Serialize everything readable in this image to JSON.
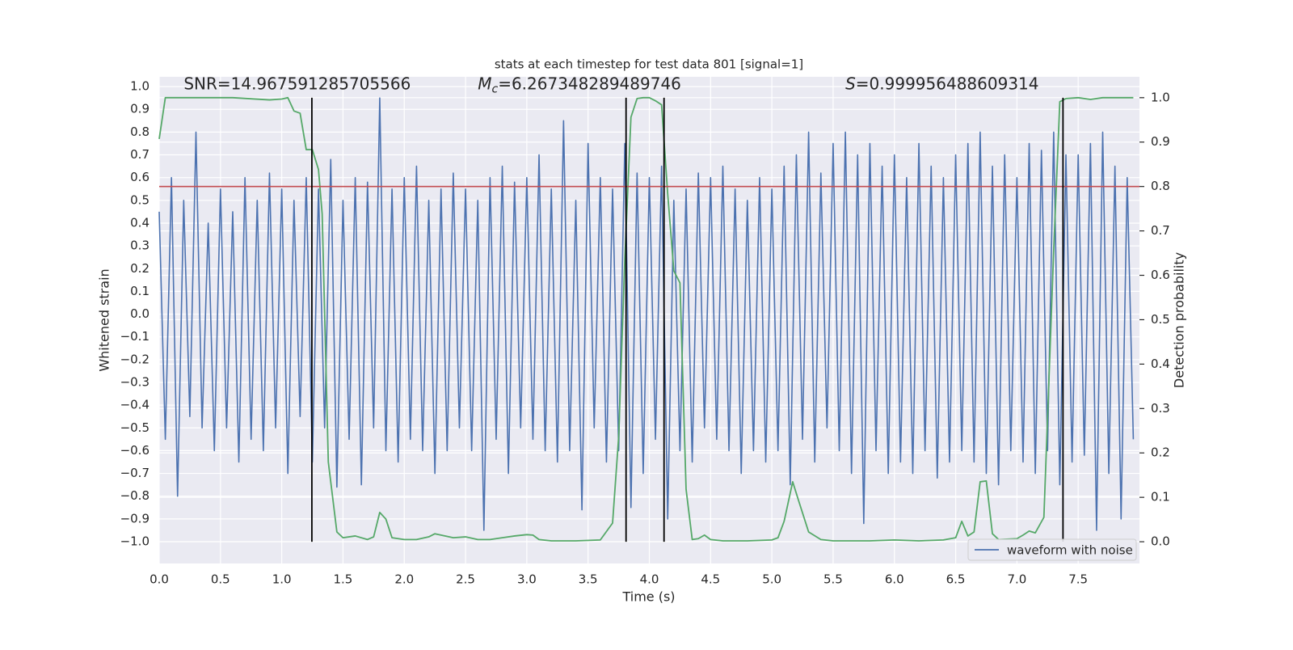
{
  "chart_data": {
    "type": "line",
    "title": "stats at each timestep for test data 801 [signal=1]",
    "xlabel": "Time (s)",
    "ylabel": "Whitened strain",
    "y2label": "Detection probability",
    "xlim": [
      0,
      8
    ],
    "ylim": [
      -1.096,
      1.043
    ],
    "y2lim": [
      -0.049,
      1.047
    ],
    "xticks": [
      {
        "value": 0,
        "label": "0.0"
      },
      0.5,
      {
        "value": 1,
        "label": "1.0"
      },
      1.5,
      {
        "value": 2,
        "label": "2.0"
      },
      2.5,
      {
        "value": 3,
        "label": "3.0"
      },
      3.5,
      {
        "value": 4,
        "label": "4.0"
      },
      4.5,
      {
        "value": 5,
        "label": "5.0"
      },
      5.5,
      {
        "value": 6,
        "label": "6.0"
      },
      6.5,
      {
        "value": 7,
        "label": "7.0"
      },
      7.5
    ],
    "yticks": [
      {
        "value": -1,
        "label": "−1.0"
      },
      {
        "value": -0.9,
        "label": "−0.9"
      },
      {
        "value": -0.8,
        "label": "−0.8"
      },
      {
        "value": -0.7,
        "label": "−0.7"
      },
      {
        "value": -0.6,
        "label": "−0.6"
      },
      {
        "value": -0.5,
        "label": "−0.5"
      },
      {
        "value": -0.4,
        "label": "−0.4"
      },
      {
        "value": -0.3,
        "label": "−0.3"
      },
      {
        "value": -0.2,
        "label": "−0.2"
      },
      {
        "value": -0.1,
        "label": "−0.1"
      },
      {
        "value": 0,
        "label": "0.0"
      },
      0.1,
      0.2,
      0.3,
      0.4,
      0.5,
      0.6,
      0.7,
      0.8,
      0.9,
      {
        "value": 1,
        "label": "1.0"
      }
    ],
    "y2ticks": [
      {
        "value": 0,
        "label": "0.0"
      },
      0.1,
      0.2,
      0.3,
      0.4,
      0.5,
      0.6,
      0.7,
      0.8,
      0.9,
      {
        "value": 1,
        "label": "1.0"
      }
    ],
    "grid": true,
    "legend": "lower right",
    "series": [
      {
        "name": "waveform with noise",
        "color": "#4c72b0",
        "x": [
          0,
          0.05,
          0.1,
          0.15,
          0.2,
          0.25,
          0.3,
          0.35,
          0.4,
          0.45,
          0.5,
          0.55,
          0.6,
          0.65,
          0.7,
          0.75,
          0.8,
          0.85,
          0.9,
          0.95,
          1,
          1.05,
          1.1,
          1.15,
          1.2,
          1.25,
          1.3,
          1.35,
          1.4,
          1.45,
          1.5,
          1.55,
          1.6,
          1.65,
          1.7,
          1.75,
          1.8,
          1.85,
          1.9,
          1.95,
          2,
          2.05,
          2.1,
          2.15,
          2.2,
          2.25,
          2.3,
          2.35,
          2.4,
          2.45,
          2.5,
          2.55,
          2.6,
          2.65,
          2.7,
          2.75,
          2.8,
          2.85,
          2.9,
          2.95,
          3,
          3.05,
          3.1,
          3.15,
          3.2,
          3.25,
          3.3,
          3.35,
          3.4,
          3.45,
          3.5,
          3.55,
          3.6,
          3.65,
          3.7,
          3.75,
          3.8,
          3.85,
          3.9,
          3.95,
          4,
          4.05,
          4.1,
          4.15,
          4.2,
          4.25,
          4.3,
          4.35,
          4.4,
          4.45,
          4.5,
          4.55,
          4.6,
          4.65,
          4.7,
          4.75,
          4.8,
          4.85,
          4.9,
          4.95,
          5,
          5.05,
          5.1,
          5.15,
          5.2,
          5.25,
          5.3,
          5.35,
          5.4,
          5.45,
          5.5,
          5.55,
          5.6,
          5.65,
          5.7,
          5.75,
          5.8,
          5.85,
          5.9,
          5.95,
          6,
          6.05,
          6.1,
          6.15,
          6.2,
          6.25,
          6.3,
          6.35,
          6.4,
          6.45,
          6.5,
          6.55,
          6.6,
          6.65,
          6.7,
          6.75,
          6.8,
          6.85,
          6.9,
          6.95,
          7,
          7.05,
          7.1,
          7.15,
          7.2,
          7.25,
          7.3,
          7.35,
          7.4,
          7.45,
          7.5,
          7.55,
          7.6,
          7.65,
          7.7,
          7.75,
          7.8,
          7.85,
          7.9,
          7.95
        ],
        "values": [
          0.45,
          -0.55,
          0.6,
          -0.8,
          0.5,
          -0.45,
          0.8,
          -0.5,
          0.4,
          -0.6,
          0.55,
          -0.5,
          0.45,
          -0.65,
          0.6,
          -0.55,
          0.5,
          -0.6,
          0.62,
          -0.5,
          0.55,
          -0.7,
          0.5,
          -0.45,
          0.6,
          -0.65,
          0.55,
          -0.5,
          0.68,
          -0.76,
          0.5,
          -0.55,
          0.6,
          -0.75,
          0.58,
          -0.5,
          0.95,
          -0.6,
          0.55,
          -0.65,
          0.6,
          -0.55,
          0.65,
          -0.6,
          0.5,
          -0.7,
          0.55,
          -0.6,
          0.62,
          -0.5,
          0.55,
          -0.6,
          0.5,
          -0.95,
          0.6,
          -0.55,
          0.65,
          -0.7,
          0.58,
          -0.5,
          0.6,
          -0.55,
          0.7,
          -0.6,
          0.55,
          -0.65,
          0.85,
          -0.6,
          0.5,
          -0.86,
          0.75,
          -0.5,
          0.6,
          -0.65,
          0.55,
          -0.6,
          0.75,
          -0.85,
          0.62,
          -0.7,
          0.6,
          -0.55,
          0.65,
          -0.9,
          0.5,
          -0.6,
          0.55,
          -0.65,
          0.62,
          -0.5,
          0.6,
          -0.55,
          0.65,
          -0.6,
          0.55,
          -0.7,
          0.5,
          -0.6,
          0.6,
          -0.65,
          0.55,
          -0.6,
          0.65,
          -0.75,
          0.7,
          -0.55,
          0.8,
          -0.65,
          0.62,
          -0.5,
          0.75,
          -0.6,
          0.8,
          -0.7,
          0.7,
          -0.92,
          0.75,
          -0.6,
          0.65,
          -0.7,
          0.7,
          -0.65,
          0.6,
          -0.7,
          0.75,
          -0.6,
          0.65,
          -0.72,
          0.6,
          -0.65,
          0.7,
          -0.6,
          0.75,
          -0.65,
          0.8,
          -0.7,
          0.65,
          -0.75,
          0.7,
          -0.6,
          0.6,
          -0.65,
          0.75,
          -0.7,
          0.72,
          -0.6,
          0.8,
          -0.75,
          0.7,
          -0.65,
          0.7,
          -0.62,
          0.75,
          -0.95,
          0.8,
          -0.7,
          0.65,
          -0.9,
          0.6,
          -0.55
        ]
      },
      {
        "color": "#55a868",
        "axis": "y2",
        "x": [
          0,
          0.05,
          0.6,
          0.9,
          1.0,
          1.05,
          1.1,
          1.15,
          1.2,
          1.25,
          1.3,
          1.33,
          1.38,
          1.45,
          1.5,
          1.6,
          1.7,
          1.75,
          1.8,
          1.85,
          1.9,
          2.0,
          2.1,
          2.2,
          2.25,
          2.3,
          2.4,
          2.5,
          2.6,
          2.7,
          2.8,
          2.9,
          3.0,
          3.05,
          3.1,
          3.2,
          3.4,
          3.6,
          3.7,
          3.75,
          3.8,
          3.85,
          3.9,
          3.95,
          4.0,
          4.05,
          4.1,
          4.15,
          4.2,
          4.25,
          4.3,
          4.35,
          4.4,
          4.45,
          4.5,
          4.6,
          4.8,
          5.0,
          5.05,
          5.1,
          5.17,
          5.22,
          5.3,
          5.4,
          5.5,
          5.8,
          6.0,
          6.2,
          6.4,
          6.5,
          6.55,
          6.6,
          6.65,
          6.7,
          6.75,
          6.8,
          6.85,
          7.0,
          7.05,
          7.1,
          7.15,
          7.22,
          7.3,
          7.35,
          7.4,
          7.5,
          7.6,
          7.7,
          7.95
        ],
        "values": [
          0.907,
          1.0,
          1.0,
          0.995,
          0.997,
          1.0,
          0.97,
          0.965,
          0.883,
          0.883,
          0.838,
          0.738,
          0.18,
          0.022,
          0.009,
          0.013,
          0.005,
          0.011,
          0.066,
          0.051,
          0.009,
          0.005,
          0.005,
          0.011,
          0.018,
          0.015,
          0.009,
          0.011,
          0.005,
          0.005,
          0.009,
          0.013,
          0.016,
          0.015,
          0.005,
          0.002,
          0.002,
          0.004,
          0.042,
          0.237,
          0.637,
          0.956,
          0.998,
          1.0,
          1.0,
          0.993,
          0.984,
          0.783,
          0.61,
          0.583,
          0.118,
          0.005,
          0.007,
          0.015,
          0.005,
          0.002,
          0.002,
          0.004,
          0.009,
          0.046,
          0.135,
          0.091,
          0.022,
          0.005,
          0.002,
          0.002,
          0.004,
          0.002,
          0.004,
          0.009,
          0.046,
          0.013,
          0.022,
          0.135,
          0.137,
          0.018,
          0.005,
          0.007,
          0.015,
          0.024,
          0.02,
          0.055,
          0.656,
          0.991,
          0.998,
          1.0,
          0.996,
          1.0,
          1.0
        ]
      }
    ],
    "threshold": {
      "value": 0.8,
      "axis": "y2",
      "color": "#c44e52"
    },
    "vlines": {
      "x": [
        1.246,
        3.81,
        4.12,
        7.376
      ],
      "range": [
        0,
        1
      ],
      "axis": "y2",
      "color": "#000000"
    },
    "annotations": [
      {
        "text": "SNR=14.967591285705566",
        "x": 0.2,
        "y": 1.01
      },
      {
        "symbol": "M",
        "subscript": "c",
        "text": "=6.267348289489746",
        "x": 2.6,
        "y": 1.01
      },
      {
        "symbol": "S",
        "text": "=0.999956488609314",
        "x": 5.6,
        "y": 1.01
      }
    ]
  }
}
